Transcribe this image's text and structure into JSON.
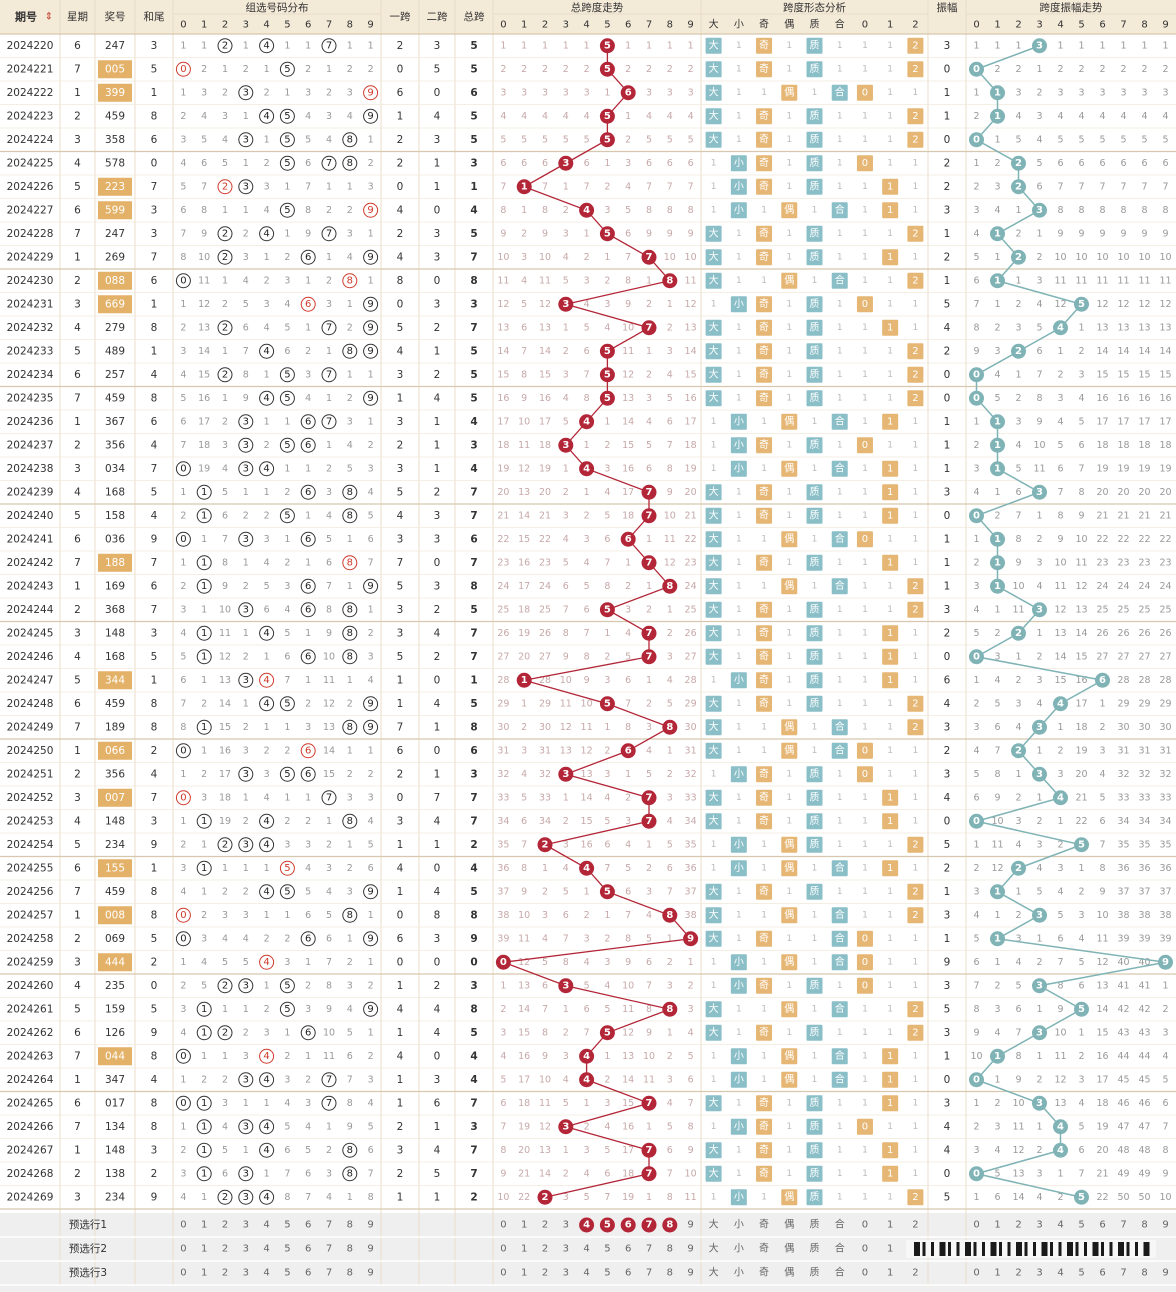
{
  "headers": {
    "period": "期号",
    "period_sort": "⇕",
    "weekday": "星期",
    "number": "奖号",
    "sum_tail": "和尾",
    "group_dist": "组选号码分布",
    "span1": "一跨",
    "span2": "二跨",
    "span_total": "总跨",
    "total_span_trend": "总跨度走势",
    "span_form": "跨度形态分析",
    "amplitude": "振幅",
    "amp_trend": "跨度振幅走势",
    "form_labels": [
      "大",
      "小",
      "奇",
      "偶",
      "质",
      "合",
      "0",
      "1",
      "2"
    ]
  },
  "digits": [
    "0",
    "1",
    "2",
    "3",
    "4",
    "5",
    "6",
    "7",
    "8",
    "9"
  ],
  "footer": {
    "labels": [
      "预选行1",
      "预选行2",
      "预选行3"
    ],
    "row1_selected_total_span": [
      4,
      5,
      6,
      7,
      8
    ]
  },
  "chart_data": {
    "type": "table",
    "columns": [
      "period",
      "weekday",
      "number",
      "sum_tail",
      "span1",
      "span2",
      "total_span",
      "amplitude"
    ],
    "rows": [
      {
        "period": "2024220",
        "weekday": "6",
        "number": "247",
        "sum_tail": "3",
        "span1": "2",
        "span2": "3",
        "total_span": "5",
        "amplitude": "3"
      },
      {
        "period": "2024221",
        "weekday": "7",
        "number": "005",
        "sum_tail": "5",
        "span1": "0",
        "span2": "5",
        "total_span": "5",
        "amplitude": "0"
      },
      {
        "period": "2024222",
        "weekday": "1",
        "number": "399",
        "sum_tail": "1",
        "span1": "6",
        "span2": "0",
        "total_span": "6",
        "amplitude": "1"
      },
      {
        "period": "2024223",
        "weekday": "2",
        "number": "459",
        "sum_tail": "8",
        "span1": "1",
        "span2": "4",
        "total_span": "5",
        "amplitude": "1"
      },
      {
        "period": "2024224",
        "weekday": "3",
        "number": "358",
        "sum_tail": "6",
        "span1": "2",
        "span2": "3",
        "total_span": "5",
        "amplitude": "0"
      },
      {
        "period": "2024225",
        "weekday": "4",
        "number": "578",
        "sum_tail": "0",
        "span1": "2",
        "span2": "1",
        "total_span": "3",
        "amplitude": "2"
      },
      {
        "period": "2024226",
        "weekday": "5",
        "number": "223",
        "sum_tail": "7",
        "span1": "0",
        "span2": "1",
        "total_span": "1",
        "amplitude": "2"
      },
      {
        "period": "2024227",
        "weekday": "6",
        "number": "599",
        "sum_tail": "3",
        "span1": "4",
        "span2": "0",
        "total_span": "4",
        "amplitude": "3"
      },
      {
        "period": "2024228",
        "weekday": "7",
        "number": "247",
        "sum_tail": "3",
        "span1": "2",
        "span2": "3",
        "total_span": "5",
        "amplitude": "1"
      },
      {
        "period": "2024229",
        "weekday": "1",
        "number": "269",
        "sum_tail": "7",
        "span1": "4",
        "span2": "3",
        "total_span": "7",
        "amplitude": "2"
      },
      {
        "period": "2024230",
        "weekday": "2",
        "number": "088",
        "sum_tail": "6",
        "span1": "8",
        "span2": "0",
        "total_span": "8",
        "amplitude": "1"
      },
      {
        "period": "2024231",
        "weekday": "3",
        "number": "669",
        "sum_tail": "1",
        "span1": "0",
        "span2": "3",
        "total_span": "3",
        "amplitude": "5"
      },
      {
        "period": "2024232",
        "weekday": "4",
        "number": "279",
        "sum_tail": "8",
        "span1": "5",
        "span2": "2",
        "total_span": "7",
        "amplitude": "4"
      },
      {
        "period": "2024233",
        "weekday": "5",
        "number": "489",
        "sum_tail": "1",
        "span1": "4",
        "span2": "1",
        "total_span": "5",
        "amplitude": "2"
      },
      {
        "period": "2024234",
        "weekday": "6",
        "number": "257",
        "sum_tail": "4",
        "span1": "3",
        "span2": "2",
        "total_span": "5",
        "amplitude": "0"
      },
      {
        "period": "2024235",
        "weekday": "7",
        "number": "459",
        "sum_tail": "8",
        "span1": "1",
        "span2": "4",
        "total_span": "5",
        "amplitude": "0"
      },
      {
        "period": "2024236",
        "weekday": "1",
        "number": "367",
        "sum_tail": "6",
        "span1": "3",
        "span2": "1",
        "total_span": "4",
        "amplitude": "1"
      },
      {
        "period": "2024237",
        "weekday": "2",
        "number": "356",
        "sum_tail": "4",
        "span1": "2",
        "span2": "1",
        "total_span": "3",
        "amplitude": "1"
      },
      {
        "period": "2024238",
        "weekday": "3",
        "number": "034",
        "sum_tail": "7",
        "span1": "3",
        "span2": "1",
        "total_span": "4",
        "amplitude": "1"
      },
      {
        "period": "2024239",
        "weekday": "4",
        "number": "168",
        "sum_tail": "5",
        "span1": "5",
        "span2": "2",
        "total_span": "7",
        "amplitude": "3"
      },
      {
        "period": "2024240",
        "weekday": "5",
        "number": "158",
        "sum_tail": "4",
        "span1": "4",
        "span2": "3",
        "total_span": "7",
        "amplitude": "0"
      },
      {
        "period": "2024241",
        "weekday": "6",
        "number": "036",
        "sum_tail": "9",
        "span1": "3",
        "span2": "3",
        "total_span": "6",
        "amplitude": "1"
      },
      {
        "period": "2024242",
        "weekday": "7",
        "number": "188",
        "sum_tail": "7",
        "span1": "7",
        "span2": "0",
        "total_span": "7",
        "amplitude": "1"
      },
      {
        "period": "2024243",
        "weekday": "1",
        "number": "169",
        "sum_tail": "6",
        "span1": "5",
        "span2": "3",
        "total_span": "8",
        "amplitude": "1"
      },
      {
        "period": "2024244",
        "weekday": "2",
        "number": "368",
        "sum_tail": "7",
        "span1": "3",
        "span2": "2",
        "total_span": "5",
        "amplitude": "3"
      },
      {
        "period": "2024245",
        "weekday": "3",
        "number": "148",
        "sum_tail": "3",
        "span1": "3",
        "span2": "4",
        "total_span": "7",
        "amplitude": "2"
      },
      {
        "period": "2024246",
        "weekday": "4",
        "number": "168",
        "sum_tail": "5",
        "span1": "5",
        "span2": "2",
        "total_span": "7",
        "amplitude": "0"
      },
      {
        "period": "2024247",
        "weekday": "5",
        "number": "344",
        "sum_tail": "1",
        "span1": "1",
        "span2": "0",
        "total_span": "1",
        "amplitude": "6"
      },
      {
        "period": "2024248",
        "weekday": "6",
        "number": "459",
        "sum_tail": "8",
        "span1": "1",
        "span2": "4",
        "total_span": "5",
        "amplitude": "4"
      },
      {
        "period": "2024249",
        "weekday": "7",
        "number": "189",
        "sum_tail": "8",
        "span1": "7",
        "span2": "1",
        "total_span": "8",
        "amplitude": "3"
      },
      {
        "period": "2024250",
        "weekday": "1",
        "number": "066",
        "sum_tail": "2",
        "span1": "6",
        "span2": "0",
        "total_span": "6",
        "amplitude": "2"
      },
      {
        "period": "2024251",
        "weekday": "2",
        "number": "356",
        "sum_tail": "4",
        "span1": "2",
        "span2": "1",
        "total_span": "3",
        "amplitude": "3"
      },
      {
        "period": "2024252",
        "weekday": "3",
        "number": "007",
        "sum_tail": "7",
        "span1": "0",
        "span2": "7",
        "total_span": "7",
        "amplitude": "4"
      },
      {
        "period": "2024253",
        "weekday": "4",
        "number": "148",
        "sum_tail": "3",
        "span1": "3",
        "span2": "4",
        "total_span": "7",
        "amplitude": "0"
      },
      {
        "period": "2024254",
        "weekday": "5",
        "number": "234",
        "sum_tail": "9",
        "span1": "1",
        "span2": "1",
        "total_span": "2",
        "amplitude": "5"
      },
      {
        "period": "2024255",
        "weekday": "6",
        "number": "155",
        "sum_tail": "1",
        "span1": "4",
        "span2": "0",
        "total_span": "4",
        "amplitude": "2"
      },
      {
        "period": "2024256",
        "weekday": "7",
        "number": "459",
        "sum_tail": "8",
        "span1": "1",
        "span2": "4",
        "total_span": "5",
        "amplitude": "1"
      },
      {
        "period": "2024257",
        "weekday": "1",
        "number": "008",
        "sum_tail": "8",
        "span1": "0",
        "span2": "8",
        "total_span": "8",
        "amplitude": "3"
      },
      {
        "period": "2024258",
        "weekday": "2",
        "number": "069",
        "sum_tail": "5",
        "span1": "6",
        "span2": "3",
        "total_span": "9",
        "amplitude": "1"
      },
      {
        "period": "2024259",
        "weekday": "3",
        "number": "444",
        "sum_tail": "2",
        "span1": "0",
        "span2": "0",
        "total_span": "0",
        "amplitude": "9"
      },
      {
        "period": "2024260",
        "weekday": "4",
        "number": "235",
        "sum_tail": "0",
        "span1": "1",
        "span2": "2",
        "total_span": "3",
        "amplitude": "3"
      },
      {
        "period": "2024261",
        "weekday": "5",
        "number": "159",
        "sum_tail": "5",
        "span1": "4",
        "span2": "4",
        "total_span": "8",
        "amplitude": "5"
      },
      {
        "period": "2024262",
        "weekday": "6",
        "number": "126",
        "sum_tail": "9",
        "span1": "1",
        "span2": "4",
        "total_span": "5",
        "amplitude": "3"
      },
      {
        "period": "2024263",
        "weekday": "7",
        "number": "044",
        "sum_tail": "8",
        "span1": "4",
        "span2": "0",
        "total_span": "4",
        "amplitude": "1"
      },
      {
        "period": "2024264",
        "weekday": "1",
        "number": "347",
        "sum_tail": "4",
        "span1": "1",
        "span2": "3",
        "total_span": "4",
        "amplitude": "0"
      },
      {
        "period": "2024265",
        "weekday": "6",
        "number": "017",
        "sum_tail": "8",
        "span1": "1",
        "span2": "6",
        "total_span": "7",
        "amplitude": "3"
      },
      {
        "period": "2024266",
        "weekday": "7",
        "number": "134",
        "sum_tail": "8",
        "span1": "2",
        "span2": "1",
        "total_span": "3",
        "amplitude": "4"
      },
      {
        "period": "2024267",
        "weekday": "1",
        "number": "148",
        "sum_tail": "3",
        "span1": "3",
        "span2": "4",
        "total_span": "7",
        "amplitude": "4"
      },
      {
        "period": "2024268",
        "weekday": "2",
        "number": "138",
        "sum_tail": "2",
        "span1": "2",
        "span2": "5",
        "total_span": "7",
        "amplitude": "0"
      },
      {
        "period": "2024269",
        "weekday": "3",
        "number": "234",
        "sum_tail": "9",
        "span1": "1",
        "span2": "1",
        "total_span": "2",
        "amplitude": "5"
      }
    ]
  },
  "colors": {
    "header_bg": "#f4ead8",
    "accent_orange": "#e3b167",
    "trend_red": "#b32638",
    "amp_teal": "#7fb3b5",
    "form_blue": "#8bbfc8",
    "form_gold": "#e6b674",
    "missing_text": "#c7a8a8",
    "grid": "#e8dcc8"
  },
  "icons": {
    "sort": "sort-arrows-icon",
    "barcode": "barcode-watermark-icon"
  }
}
